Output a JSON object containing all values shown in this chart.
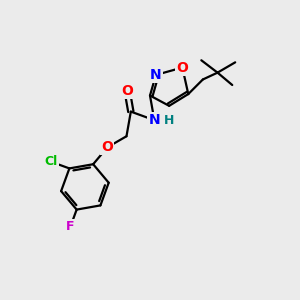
{
  "bg_color": "#ebebeb",
  "bond_color": "#000000",
  "atom_colors": {
    "O": "#ff0000",
    "N": "#0000ff",
    "Cl": "#00bb00",
    "F": "#cc00cc",
    "H": "#008080",
    "C": "#000000"
  },
  "line_width": 1.6,
  "font_size": 9,
  "fig_size": [
    3.0,
    3.0
  ],
  "dpi": 100
}
